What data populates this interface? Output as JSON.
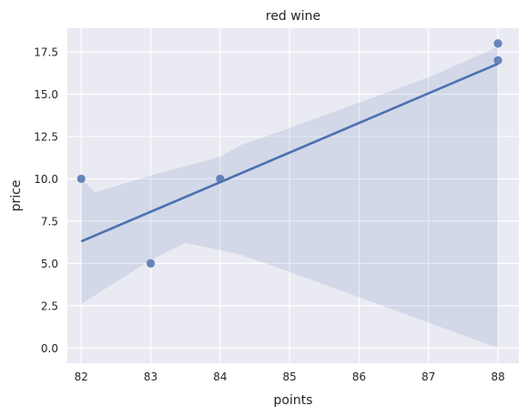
{
  "chart_data": {
    "type": "scatter",
    "title": "red wine",
    "xlabel": "points",
    "ylabel": "price",
    "xlim": [
      81.8,
      88.3
    ],
    "ylim": [
      -0.9,
      18.9
    ],
    "xticks": [
      82,
      83,
      84,
      85,
      86,
      87,
      88
    ],
    "xtick_labels": [
      "82",
      "83",
      "84",
      "85",
      "86",
      "87",
      "88"
    ],
    "yticks": [
      0.0,
      2.5,
      5.0,
      7.5,
      10.0,
      12.5,
      15.0,
      17.5
    ],
    "ytick_labels": [
      "0.0",
      "2.5",
      "5.0",
      "7.5",
      "10.0",
      "12.5",
      "15.0",
      "17.5"
    ],
    "grid": true,
    "points": [
      {
        "x": 82,
        "y": 10
      },
      {
        "x": 83,
        "y": 5
      },
      {
        "x": 84,
        "y": 10
      },
      {
        "x": 88,
        "y": 18
      },
      {
        "x": 88,
        "y": 17
      }
    ],
    "regression_line": {
      "x": [
        82,
        88
      ],
      "y": [
        6.3,
        16.8
      ]
    },
    "confidence_band": {
      "upper": [
        [
          82,
          10.0
        ],
        [
          82.2,
          9.2
        ],
        [
          83,
          10.2
        ],
        [
          84,
          11.3
        ],
        [
          84.3,
          12.0
        ],
        [
          85,
          13.0
        ],
        [
          86,
          14.5
        ],
        [
          87,
          16.0
        ],
        [
          88,
          17.8
        ]
      ],
      "lower": [
        [
          82,
          2.6
        ],
        [
          83,
          5.2
        ],
        [
          83.5,
          6.2
        ],
        [
          84,
          5.8
        ],
        [
          84.3,
          5.5
        ],
        [
          85,
          4.5
        ],
        [
          86,
          3.0
        ],
        [
          87,
          1.5
        ],
        [
          88,
          0.0
        ]
      ]
    },
    "colors": {
      "background": "#eaeaf2",
      "grid": "#ffffff",
      "marker": "#4c72b0",
      "line": "#4c72b0",
      "band": "#4c72b0"
    }
  }
}
